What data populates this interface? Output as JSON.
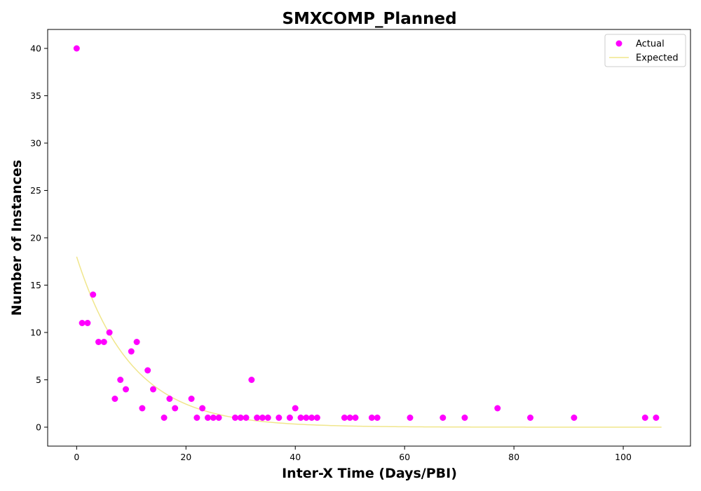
{
  "chart_data": {
    "type": "scatter",
    "title": "SMXCOMP_Planned",
    "xlabel": "Inter-X Time (Days/PBI)",
    "ylabel": "Number of Instances",
    "xlim": [
      -5.3,
      112.3
    ],
    "ylim": [
      -2,
      42
    ],
    "xticks": [
      0,
      20,
      40,
      60,
      80,
      100
    ],
    "yticks": [
      0,
      5,
      10,
      15,
      20,
      25,
      30,
      35,
      40
    ],
    "grid": false,
    "legend": {
      "position": "top-right"
    },
    "series": [
      {
        "name": "Actual",
        "kind": "scatter",
        "color": "#ff00ff",
        "points": [
          [
            0,
            40
          ],
          [
            1,
            11
          ],
          [
            2,
            11
          ],
          [
            3,
            14
          ],
          [
            4,
            9
          ],
          [
            5,
            9
          ],
          [
            6,
            10
          ],
          [
            7,
            3
          ],
          [
            8,
            5
          ],
          [
            9,
            4
          ],
          [
            10,
            8
          ],
          [
            11,
            9
          ],
          [
            12,
            2
          ],
          [
            13,
            6
          ],
          [
            14,
            4
          ],
          [
            16,
            1
          ],
          [
            17,
            3
          ],
          [
            18,
            2
          ],
          [
            21,
            3
          ],
          [
            22,
            1
          ],
          [
            23,
            2
          ],
          [
            24,
            1
          ],
          [
            25,
            1
          ],
          [
            26,
            1
          ],
          [
            29,
            1
          ],
          [
            30,
            1
          ],
          [
            31,
            1
          ],
          [
            32,
            5
          ],
          [
            33,
            1
          ],
          [
            34,
            1
          ],
          [
            35,
            1
          ],
          [
            37,
            1
          ],
          [
            39,
            1
          ],
          [
            40,
            2
          ],
          [
            41,
            1
          ],
          [
            42,
            1
          ],
          [
            43,
            1
          ],
          [
            44,
            1
          ],
          [
            49,
            1
          ],
          [
            50,
            1
          ],
          [
            51,
            1
          ],
          [
            54,
            1
          ],
          [
            55,
            1
          ],
          [
            61,
            1
          ],
          [
            67,
            1
          ],
          [
            71,
            1
          ],
          [
            77,
            2
          ],
          [
            83,
            1
          ],
          [
            91,
            1
          ],
          [
            104,
            1
          ],
          [
            106,
            1
          ]
        ]
      },
      {
        "name": "Expected",
        "kind": "line",
        "color": "#f0e68c",
        "function": "18*exp(-0.1*x)",
        "x_range": [
          0,
          107
        ]
      }
    ]
  }
}
